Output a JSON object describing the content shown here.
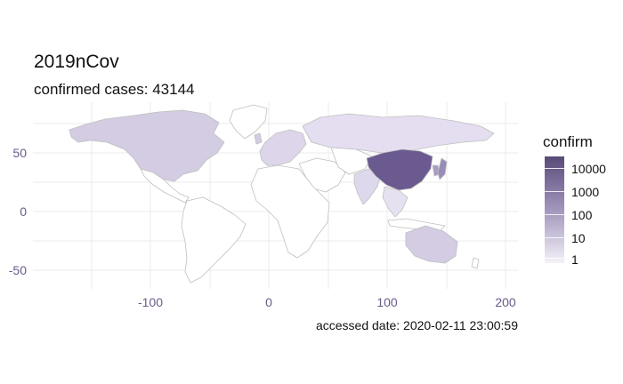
{
  "title": "2019nCov",
  "subtitle": "confirmed cases: 43144",
  "caption": "accessed date: 2020-02-11 23:00:59",
  "legend": {
    "title": "confirm",
    "labels": [
      "10000",
      "1000",
      "100",
      "10",
      "1"
    ],
    "scale": "log10",
    "colors": {
      "high": "#5a4a78",
      "low": "#f4f2f8"
    }
  },
  "axes": {
    "x_ticks": [
      "-100",
      "0",
      "100",
      "200"
    ],
    "y_ticks": [
      "50",
      "0",
      "-50"
    ],
    "x_range": [
      -180,
      200
    ],
    "y_range": [
      -60,
      90
    ],
    "grid": true
  },
  "colors": {
    "no_data": "#ffffff",
    "border": "#bfbfbf",
    "china": "#6b5a8f",
    "tick_text": "#6a5a8a"
  },
  "regions": [
    {
      "name": "China",
      "confirm_level": "10000+"
    },
    {
      "name": "Japan / Korea",
      "confirm_level": "10-100"
    },
    {
      "name": "USA / Canada",
      "confirm_level": "10"
    },
    {
      "name": "Australia",
      "confirm_level": "10"
    },
    {
      "name": "Russia",
      "confirm_level": "1-10"
    },
    {
      "name": "India",
      "confirm_level": "1-10"
    },
    {
      "name": "Europe",
      "confirm_level": "1-10"
    }
  ]
}
